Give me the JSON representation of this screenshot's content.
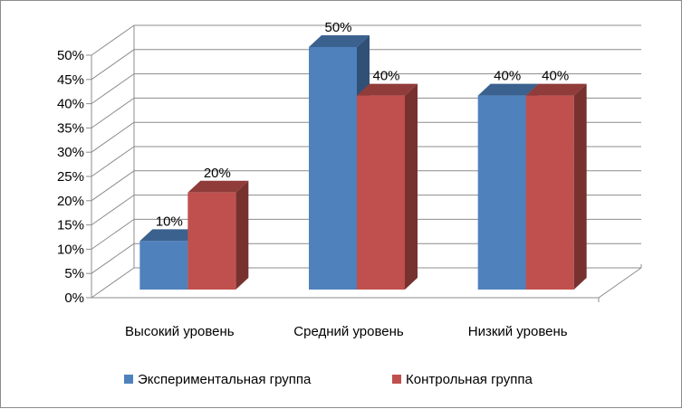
{
  "chart_data": {
    "type": "bar",
    "categories": [
      "Высокий уровень",
      "Средний уровень",
      "Низкий уровень"
    ],
    "series": [
      {
        "name": "Экспериментальная группа",
        "values": [
          10,
          50,
          40
        ],
        "color": "#4f81bd"
      },
      {
        "name": "Контрольная группа",
        "values": [
          20,
          40,
          40
        ],
        "color": "#c0504d"
      }
    ],
    "ylim": [
      0,
      50
    ],
    "ytick_step": 5,
    "ytick_labels": [
      "0%",
      "5%",
      "10%",
      "15%",
      "20%",
      "25%",
      "30%",
      "35%",
      "40%",
      "45%",
      "50%"
    ],
    "data_labels": [
      [
        "10%",
        "50%",
        "40%"
      ],
      [
        "20%",
        "40%",
        "40%"
      ]
    ],
    "grid": true,
    "legend": "bottom",
    "style": "3d-clustered-column"
  }
}
